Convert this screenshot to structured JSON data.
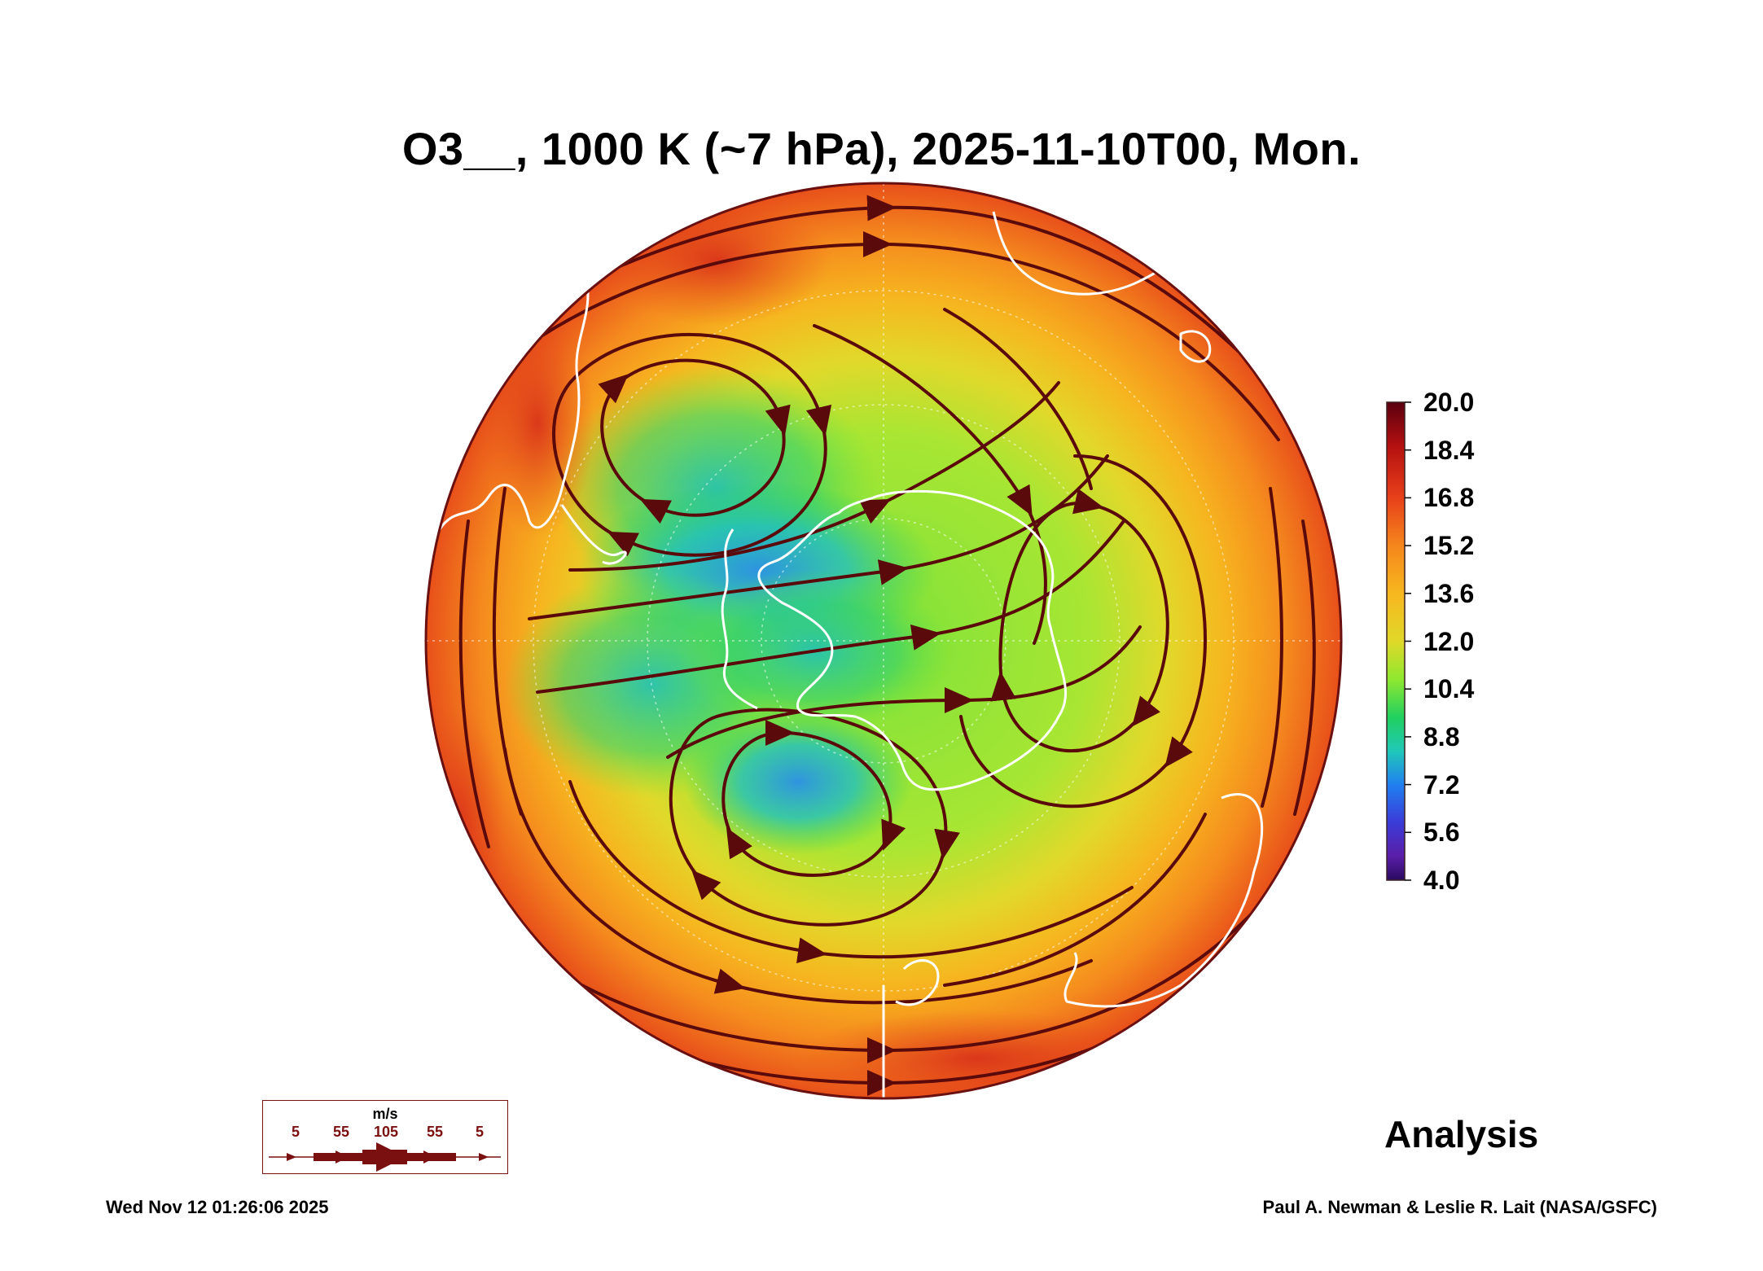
{
  "title": "O3__, 1000 K (~7 hPa), 2025-11-10T00, Mon.",
  "label": "Analysis",
  "timestamp": "Wed Nov 12 01:26:06 2025",
  "credit": "Paul A. Newman & Leslie R. Lait (NASA/GSFC)",
  "colorbar": {
    "ticks": [
      "20.0",
      "18.4",
      "16.8",
      "15.2",
      "13.6",
      "12.0",
      "10.4",
      "8.8",
      "7.2",
      "5.6",
      "4.0"
    ],
    "colors": [
      "#5a0010",
      "#b31010",
      "#e8401a",
      "#f5861c",
      "#f7b71f",
      "#e0d828",
      "#8ee830",
      "#20d060",
      "#20c8b8",
      "#2080f0",
      "#3b3bd8",
      "#5a1ea8",
      "#2a0a60"
    ]
  },
  "legend": {
    "unit": "m/s",
    "values": [
      "5",
      "55",
      "105",
      "55",
      "5"
    ]
  },
  "colors": {
    "streamline": "#5a0a0a",
    "coast": "#ffffff",
    "rim": "#f0601a"
  }
}
